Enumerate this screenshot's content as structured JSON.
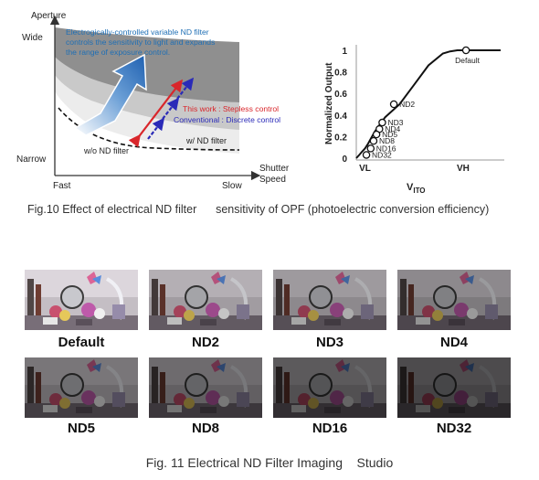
{
  "fig10": {
    "caption": "Fig.10 Effect of electrical ND filter      sensitivity of OPF (photoelectric conversion efficiency)",
    "left_diagram": {
      "y_axis_title": "Aperture",
      "y_wide": "Wide",
      "y_narrow": "Narrow",
      "x_fast": "Fast",
      "x_slow": "Slow",
      "x_axis_title_1": "Shutter",
      "x_axis_title_2": "Speed",
      "annotation_1": "Electrogically-controlled variable ND filter",
      "annotation_2": "controls the sensitivity to light and expands",
      "annotation_3": "the range of exposure control.",
      "this_work": "This work : Stepless control",
      "conventional": "Conventional : Discrete control",
      "wo_nd": "w/o ND filter",
      "w_nd": "w/ ND filter",
      "colors": {
        "annotation": "#1f6fb5",
        "this_work": "#d9262b",
        "conventional": "#2a2ab8"
      }
    },
    "right_chart": {
      "ylabel": "Normalized Output",
      "xlabel_main": "V",
      "xlabel_sub": "ITO",
      "x_tick_vl": "VL",
      "x_tick_vh": "VH"
    }
  },
  "chart_data": {
    "type": "line",
    "xlabel": "VITO",
    "ylabel": "Normalized Output",
    "ylim": [
      0,
      1
    ],
    "yticks": [
      "0",
      "0.2",
      "0.4",
      "0.6",
      "0.8",
      "1"
    ],
    "xticks": [
      "VL",
      "VH"
    ],
    "grid": false,
    "x": [
      0.0,
      0.02,
      0.04,
      0.06,
      0.08,
      0.1,
      0.13,
      0.2,
      0.3,
      0.4,
      0.5,
      0.6,
      0.65,
      0.7,
      0.8,
      1.0
    ],
    "y": [
      0.0,
      0.03,
      0.06,
      0.09,
      0.13,
      0.18,
      0.25,
      0.38,
      0.5,
      0.68,
      0.86,
      0.97,
      0.99,
      1.0,
      1.0,
      1.0
    ],
    "points": [
      {
        "label": "Default",
        "x": 0.76,
        "y": 1.0
      },
      {
        "label": "ND2",
        "x": 0.26,
        "y": 0.5
      },
      {
        "label": "ND3",
        "x": 0.18,
        "y": 0.33
      },
      {
        "label": "ND4",
        "x": 0.16,
        "y": 0.27
      },
      {
        "label": "ND5",
        "x": 0.14,
        "y": 0.22
      },
      {
        "label": "ND8",
        "x": 0.12,
        "y": 0.16
      },
      {
        "label": "ND16",
        "x": 0.1,
        "y": 0.09
      },
      {
        "label": "ND32",
        "x": 0.07,
        "y": 0.03
      }
    ]
  },
  "fig11": {
    "caption": "Fig. 11 Electrical ND Filter Imaging    Studio",
    "photos": [
      {
        "label": "Default",
        "brightness": 1.0
      },
      {
        "label": "ND2",
        "brightness": 0.82
      },
      {
        "label": "ND3",
        "brightness": 0.72
      },
      {
        "label": "ND4",
        "brightness": 0.64
      },
      {
        "label": "ND5",
        "brightness": 0.55
      },
      {
        "label": "ND8",
        "brightness": 0.5
      },
      {
        "label": "ND16",
        "brightness": 0.42
      },
      {
        "label": "ND32",
        "brightness": 0.35
      }
    ]
  }
}
